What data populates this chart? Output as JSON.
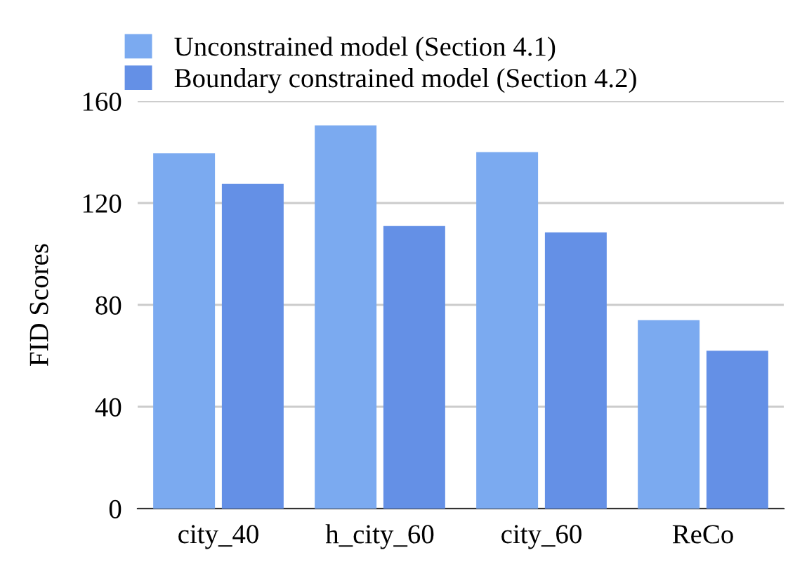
{
  "chart_data": {
    "type": "bar",
    "ylabel": "FID Scores",
    "categories": [
      "city_40",
      "h_city_60",
      "city_60",
      "ReCo"
    ],
    "series": [
      {
        "name": "Unconstrained model (Section 4.1)",
        "color": "#7baaf0",
        "values": [
          139.5,
          150.5,
          140,
          74
        ]
      },
      {
        "name": "Boundary constrained model (Section 4.2)",
        "color": "#6490e6",
        "values": [
          127.5,
          111,
          108.5,
          62
        ]
      }
    ],
    "ylim": [
      0,
      160
    ],
    "yticks": [
      0,
      40,
      80,
      120,
      160
    ],
    "grid": "y",
    "legend": "top left"
  }
}
